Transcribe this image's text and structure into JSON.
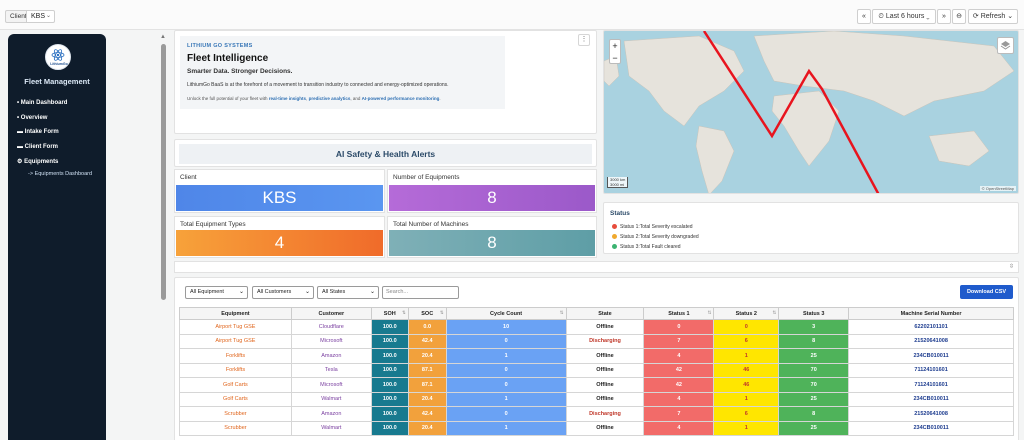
{
  "topbar": {
    "variable_label": "Client",
    "variable_value": "KBS",
    "time_range": "Last 6 hours",
    "refresh_label": "Refresh"
  },
  "sidebar": {
    "logo_text": "LithiumGo",
    "title": "Fleet Management",
    "items": [
      {
        "bullet": "•",
        "label": "Main Dashboard"
      },
      {
        "bullet": "•",
        "label": "Overview"
      },
      {
        "bullet": "▬",
        "label": "Intake Form"
      },
      {
        "bullet": "▬",
        "label": "Client Form"
      },
      {
        "bullet": "⚙",
        "label": "Equipments"
      }
    ],
    "subitem": "-> Equipments Dashboard"
  },
  "hero": {
    "kicker": "LITHIUM GO SYSTEMS",
    "title": "Fleet Intelligence",
    "subtitle": "Smarter Data. Stronger Decisions.",
    "paragraph": "LithiumGo BaaS is at the forefront of a movement to transition industry to connected and energy-optimized operations.",
    "cta_prefix": "Unlock the full potential of your fleet with ",
    "cta_link1": "real-time insights",
    "cta_sep1": ", ",
    "cta_link2": "predictive analytics",
    "cta_sep2": ", and ",
    "cta_link3": "AI-powered performance monitoring",
    "cta_suffix": "."
  },
  "alerts_title": "AI Safety & Health Alerts",
  "stats": {
    "client": {
      "label": "Client",
      "value": "KBS"
    },
    "equipments": {
      "label": "Number of Equipments",
      "value": "8"
    },
    "types": {
      "label": "Total Equipment Types",
      "value": "4"
    },
    "machines": {
      "label": "Total Number of Machines",
      "value": "8"
    }
  },
  "map": {
    "zoom_in": "+",
    "zoom_out": "−",
    "scale_km": "3000 km",
    "scale_mi": "3000 mi",
    "attribution": "© OpenStreetMap"
  },
  "status": {
    "title": "Status",
    "rows": [
      {
        "color": "#e74c3c",
        "text": "Status 1:Total Severity escalated"
      },
      {
        "color": "#f0a92e",
        "text": "Status 2:Total Severity downgraded"
      },
      {
        "color": "#3cb371",
        "text": "Status 3:Total Fault cleared"
      }
    ]
  },
  "filters": {
    "equipment": "All Equipment",
    "customers": "All Customers",
    "states": "All States",
    "search_placeholder": "Search...",
    "download": "Download CSV"
  },
  "table": {
    "headers": [
      "Equipment",
      "Customer",
      "SOH",
      "SOC",
      "Cycle Count",
      "State",
      "Status 1",
      "Status 2",
      "Status 3",
      "Machine Serial Number"
    ],
    "rows": [
      [
        "Airport Tug GSE",
        "Cloudflare",
        "100.0",
        "0.0",
        "10",
        "Offline",
        "0",
        "0",
        "3",
        "62202101101"
      ],
      [
        "Airport Tug GSE",
        "Microsoft",
        "100.0",
        "42.4",
        "0",
        "Discharging",
        "7",
        "6",
        "8",
        "21520641008"
      ],
      [
        "Forklifts",
        "Amazon",
        "100.0",
        "20.4",
        "1",
        "Offline",
        "4",
        "1",
        "25",
        "234CB010011"
      ],
      [
        "Forklifts",
        "Tesla",
        "100.0",
        "87.1",
        "0",
        "Offline",
        "42",
        "46",
        "70",
        "71124101601"
      ],
      [
        "Golf Carts",
        "Microsoft",
        "100.0",
        "87.1",
        "0",
        "Offline",
        "42",
        "46",
        "70",
        "71124101601"
      ],
      [
        "Golf Carts",
        "Walmart",
        "100.0",
        "20.4",
        "1",
        "Offline",
        "4",
        "1",
        "25",
        "234CB010011"
      ],
      [
        "Scrubber",
        "Amazon",
        "100.0",
        "42.4",
        "0",
        "Discharging",
        "7",
        "6",
        "8",
        "21520641008"
      ],
      [
        "Scrubber",
        "Walmart",
        "100.0",
        "20.4",
        "1",
        "Offline",
        "4",
        "1",
        "25",
        "234CB010011"
      ]
    ]
  }
}
